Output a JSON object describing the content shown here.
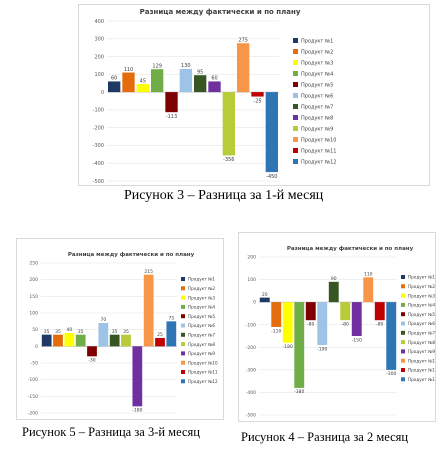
{
  "captions": {
    "fig3": "Рисунок 3 – Разница за 1-й месяц",
    "fig5": "Рисунок 5 – Разница за 3-й месяц",
    "fig4": "Рисунок 4 – Разница за 2 месяц"
  },
  "chart_data": [
    {
      "type": "bar",
      "title": "Разница между фактически и по плану",
      "ylim": [
        -500,
        400
      ],
      "yticks": [
        400,
        300,
        200,
        100,
        0,
        -100,
        -200,
        -300,
        -400,
        -500
      ],
      "legend_position": "right",
      "categories": [
        "Продукт №1",
        "Продукт №2",
        "Продукт №3",
        "Продукт №4",
        "Продукт №5",
        "Продукт №6",
        "Продукт №7",
        "Продукт №8",
        "Продукт №9",
        "Продукт №10",
        "Продукт №11",
        "Продукт №12"
      ],
      "values": [
        60,
        110,
        45,
        129,
        -113,
        130,
        95,
        60,
        -356,
        275,
        -25,
        -450
      ],
      "data_labels": [
        "60",
        "110",
        "45",
        "129",
        "-113",
        "130",
        "95",
        "60",
        "-356",
        "275",
        "-25",
        "-450"
      ],
      "colors": [
        "#1f3864",
        "#e46c0a",
        "#ffff00",
        "#70ad47",
        "#7f0000",
        "#9dc3e6",
        "#375623",
        "#7030a0",
        "#b8cc3a",
        "#f79646",
        "#c00000",
        "#2e75b6"
      ]
    },
    {
      "type": "bar",
      "title": "Разница между фактически и по плану",
      "ylim": [
        -200,
        250
      ],
      "yticks": [
        250,
        200,
        150,
        100,
        50,
        0,
        -50,
        -100,
        -150,
        -200
      ],
      "legend_position": "right",
      "categories": [
        "Продукт №1",
        "Продукт №2",
        "Продукт №3",
        "Продукт №4",
        "Продукт №5",
        "Продукт №6",
        "Продукт №7",
        "Продукт №8",
        "Продукт №9",
        "Продукт №10",
        "Продукт №11",
        "Продукт №12"
      ],
      "values": [
        35,
        35,
        40,
        35,
        -30,
        70,
        35,
        35,
        -180,
        215,
        25,
        75
      ],
      "data_labels": [
        "35",
        "35",
        "40",
        "35",
        "-30",
        "70",
        "35",
        "35",
        "-180",
        "215",
        "25",
        "75"
      ],
      "colors": [
        "#1f3864",
        "#e46c0a",
        "#ffff00",
        "#70ad47",
        "#7f0000",
        "#9dc3e6",
        "#375623",
        "#b8cc3a",
        "#7030a0",
        "#f79646",
        "#c00000",
        "#2e75b6"
      ]
    },
    {
      "type": "bar",
      "title": "Разница между фактически и по плану",
      "ylim": [
        -500,
        200
      ],
      "yticks": [
        200,
        100,
        0,
        -100,
        -200,
        -300,
        -400,
        -500
      ],
      "legend_position": "right",
      "categories": [
        "Продукт №1",
        "Продукт №2",
        "Продукт №3",
        "Продукт №4",
        "Продукт №5",
        "Продукт №6",
        "Продукт №7",
        "Продукт №8",
        "Продукт №9",
        "Продукт №10",
        "Продукт №11",
        "Продукт №12"
      ],
      "values": [
        20,
        -110,
        -180,
        -380,
        -80,
        -190,
        90,
        -80,
        -150,
        110,
        -80,
        -300
      ],
      "data_labels": [
        "20",
        "-110",
        "-180",
        "-380",
        "-80",
        "-190",
        "90",
        "-80",
        "-150",
        "110",
        "-80",
        "-300"
      ],
      "colors": [
        "#1f3864",
        "#e46c0a",
        "#ffff00",
        "#70ad47",
        "#7f0000",
        "#9dc3e6",
        "#375623",
        "#b8cc3a",
        "#7030a0",
        "#f79646",
        "#c00000",
        "#2e75b6"
      ]
    }
  ]
}
